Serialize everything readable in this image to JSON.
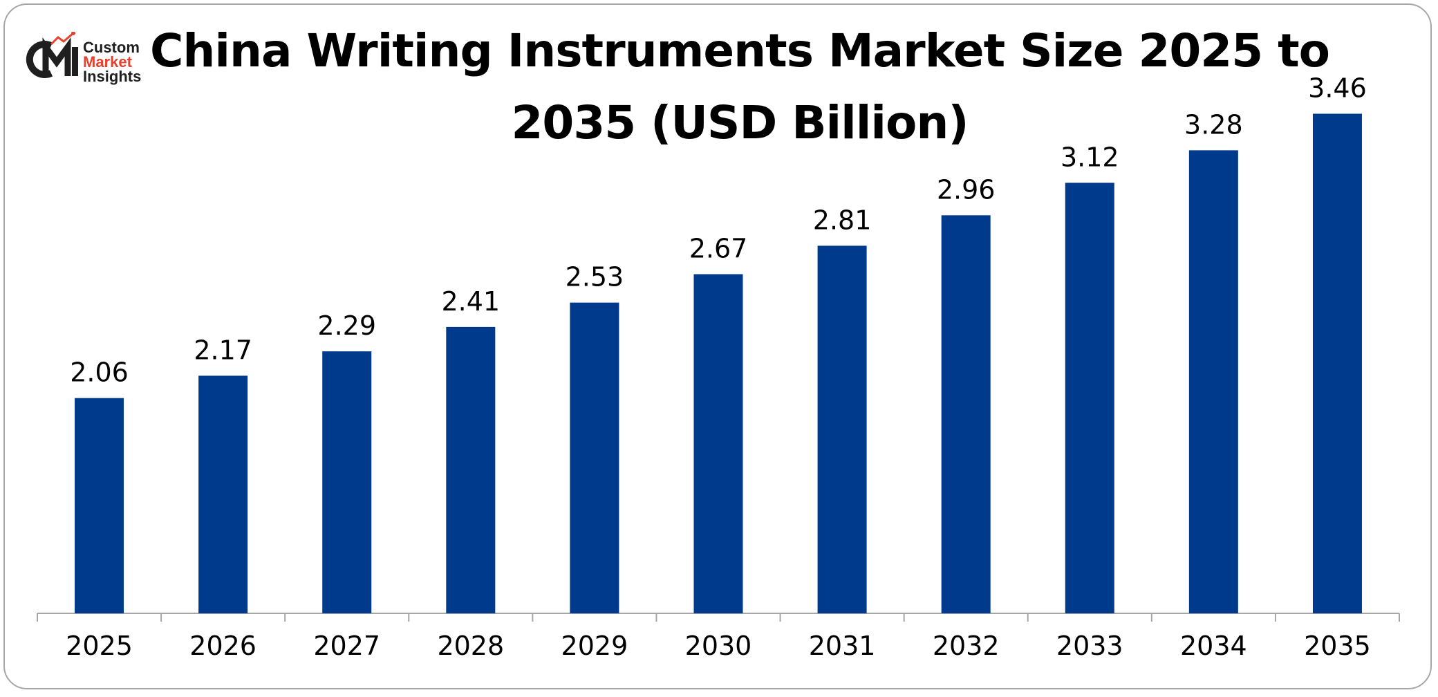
{
  "logo": {
    "line1": "Custom",
    "line2": "Market",
    "line3": "Insights",
    "mark_letters": "CMI",
    "colors": {
      "dark": "#1f1f1f",
      "accent": "#e8412c"
    }
  },
  "chart_data": {
    "type": "bar",
    "title": "China Writing Instruments Market Size 2025 to 2035 (USD Billion)",
    "title_line1": "China Writing Instruments Market Size 2025 to",
    "title_line2": "2035 (USD Billion)",
    "categories": [
      "2025",
      "2026",
      "2027",
      "2028",
      "2029",
      "2030",
      "2031",
      "2032",
      "2033",
      "2034",
      "2035"
    ],
    "values": [
      2.06,
      2.17,
      2.29,
      2.41,
      2.53,
      2.67,
      2.81,
      2.96,
      3.12,
      3.28,
      3.46
    ],
    "value_labels": [
      "2.06",
      "2.17",
      "2.29",
      "2.41",
      "2.53",
      "2.67",
      "2.81",
      "2.96",
      "3.12",
      "3.28",
      "3.46"
    ],
    "xlabel": "",
    "ylabel": "",
    "ylim": [
      1.0,
      3.7
    ],
    "grid": false,
    "legend": "none",
    "bar_color": "#003a8c",
    "axis_color": "#a6a6a6"
  }
}
